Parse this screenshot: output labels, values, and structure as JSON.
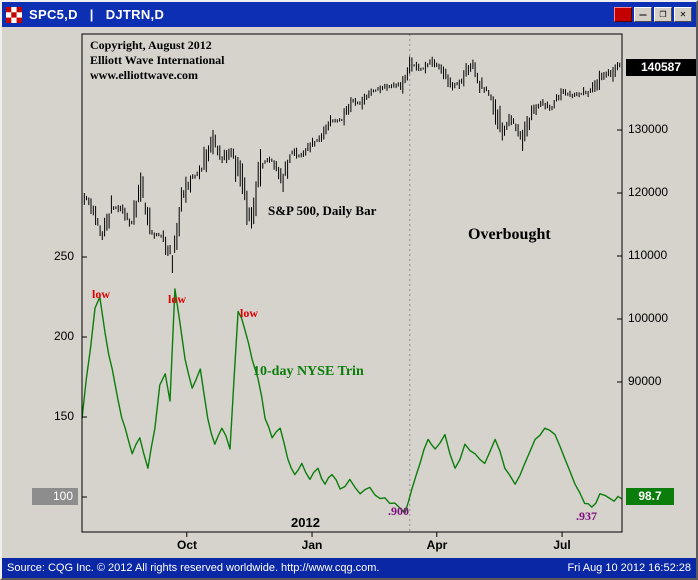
{
  "window": {
    "title_left": "SPC5,D",
    "title_sep": "|",
    "title_right": "DJTRN,D",
    "controls": {
      "minimize": "—",
      "maximize": "❐",
      "close": "✕"
    }
  },
  "status_bar": {
    "left": "Source: CQG Inc. © 2012 All rights reserved worldwide. http://www.cqg.com.",
    "right": "Fri Aug 10 2012 16:52:28"
  },
  "axes": {
    "left_ticks": [
      "250",
      "200",
      "150",
      "100"
    ],
    "right_ticks": [
      "130000",
      "120000",
      "110000",
      "100000",
      "90000"
    ],
    "right_current": "140587",
    "trin_current": "98.7",
    "x_ticks": [
      "Oct",
      "Jan",
      "Apr",
      "Jul"
    ]
  },
  "annotations": {
    "copyright_line1": "Copyright, August 2012",
    "copyright_line2": "Elliott Wave International",
    "copyright_line3": "www.elliottwave.com",
    "sp_label": "S&P 500, Daily Bar",
    "overbought": "Overbought",
    "trin_label": "10-day NYSE Trin",
    "low": "low",
    "trough_1": ".900",
    "trough_2": ".937",
    "year": "2012"
  },
  "colors": {
    "title_bar": "#0c2fb4",
    "status_bar": "#0a28a6",
    "chart_bg": "#d6d3cc",
    "bar_series": "#000000",
    "trin_line": "#0b7d0b",
    "price_box_bg": "#000000",
    "trin_box_bg": "#0b7d0b",
    "scale_box_bg": "#8d8d8d",
    "low_label": "#e00000",
    "trough_label": "#7b0c7e"
  },
  "chart_data": [
    {
      "type": "bar",
      "name": "S&P 500, Daily Bar",
      "period": "Aug 2011 to Aug 10 2012, daily bars",
      "x_ticks": [
        {
          "label": "Oct",
          "t": 0.194
        },
        {
          "label": "Jan",
          "t": 0.426
        },
        {
          "label": "Apr",
          "t": 0.657
        },
        {
          "label": "Jul",
          "t": 0.889
        }
      ],
      "year_marker": "2012",
      "y_axis": {
        "ticks": [
          130000,
          120000,
          110000,
          100000,
          90000
        ],
        "last_price": 140587,
        "scale_note": "index value x 100",
        "range_shown": [
          90000,
          142000
        ]
      },
      "weekly_closes": [
        1199,
        1179,
        1123,
        1177,
        1174,
        1154,
        1216,
        1136,
        1131,
        1100,
        1190,
        1224,
        1238,
        1285,
        1253,
        1264,
        1216,
        1159,
        1244,
        1255,
        1220,
        1265,
        1258,
        1278,
        1289,
        1315,
        1316,
        1345,
        1343,
        1361,
        1366,
        1370,
        1371,
        1404,
        1397,
        1408,
        1398,
        1370,
        1379,
        1403,
        1369,
        1353,
        1295,
        1318,
        1278,
        1326,
        1343,
        1335,
        1362,
        1355,
        1357,
        1363,
        1386,
        1391,
        1406
      ],
      "last_close": 1405.87
    },
    {
      "type": "line",
      "name": "10-day NYSE Trin",
      "color": "#0b7d0b",
      "y_axis": {
        "ticks": [
          250,
          200,
          150,
          100
        ],
        "last_value": 98.7,
        "scale_note": "Trin x 100",
        "range_shown": [
          85,
          260
        ]
      },
      "points": [
        [
          0.0,
          1.49
        ],
        [
          0.024,
          2.18
        ],
        [
          0.033,
          2.25
        ],
        [
          0.043,
          2.02
        ],
        [
          0.056,
          1.8
        ],
        [
          0.067,
          1.6
        ],
        [
          0.08,
          1.43
        ],
        [
          0.093,
          1.27
        ],
        [
          0.107,
          1.37
        ],
        [
          0.122,
          1.18
        ],
        [
          0.135,
          1.43
        ],
        [
          0.144,
          1.7
        ],
        [
          0.154,
          1.77
        ],
        [
          0.163,
          1.6
        ],
        [
          0.172,
          2.3
        ],
        [
          0.181,
          2.1
        ],
        [
          0.191,
          1.86
        ],
        [
          0.204,
          1.68
        ],
        [
          0.219,
          1.8
        ],
        [
          0.233,
          1.49
        ],
        [
          0.246,
          1.33
        ],
        [
          0.259,
          1.43
        ],
        [
          0.274,
          1.3
        ],
        [
          0.289,
          2.16
        ],
        [
          0.302,
          2.04
        ],
        [
          0.315,
          1.86
        ],
        [
          0.326,
          1.74
        ],
        [
          0.339,
          1.49
        ],
        [
          0.352,
          1.37
        ],
        [
          0.367,
          1.43
        ],
        [
          0.381,
          1.24
        ],
        [
          0.394,
          1.14
        ],
        [
          0.407,
          1.21
        ],
        [
          0.422,
          1.11
        ],
        [
          0.437,
          1.18
        ],
        [
          0.45,
          1.08
        ],
        [
          0.463,
          1.14
        ],
        [
          0.478,
          1.05
        ],
        [
          0.496,
          1.11
        ],
        [
          0.515,
          1.02
        ],
        [
          0.533,
          1.06
        ],
        [
          0.552,
          0.99
        ],
        [
          0.57,
          0.96
        ],
        [
          0.589,
          0.93
        ],
        [
          0.598,
          0.9
        ],
        [
          0.611,
          1.05
        ],
        [
          0.626,
          1.21
        ],
        [
          0.641,
          1.36
        ],
        [
          0.654,
          1.3
        ],
        [
          0.672,
          1.39
        ],
        [
          0.691,
          1.18
        ],
        [
          0.709,
          1.33
        ],
        [
          0.728,
          1.27
        ],
        [
          0.746,
          1.21
        ],
        [
          0.765,
          1.36
        ],
        [
          0.783,
          1.18
        ],
        [
          0.802,
          1.08
        ],
        [
          0.82,
          1.21
        ],
        [
          0.839,
          1.36
        ],
        [
          0.857,
          1.43
        ],
        [
          0.876,
          1.39
        ],
        [
          0.894,
          1.24
        ],
        [
          0.913,
          1.08
        ],
        [
          0.931,
          0.96
        ],
        [
          0.944,
          0.937
        ],
        [
          0.959,
          1.02
        ],
        [
          0.978,
          0.99
        ],
        [
          1.0,
          0.987
        ]
      ],
      "peaks_labeled_low": [
        [
          0.033,
          2.25
        ],
        [
          0.172,
          2.3
        ],
        [
          0.289,
          2.16
        ]
      ],
      "troughs": [
        {
          "t": 0.598,
          "value": 0.9,
          "label": ".900"
        },
        {
          "t": 0.944,
          "value": 0.937,
          "label": ".937"
        }
      ],
      "event_line_t": 0.607
    }
  ]
}
